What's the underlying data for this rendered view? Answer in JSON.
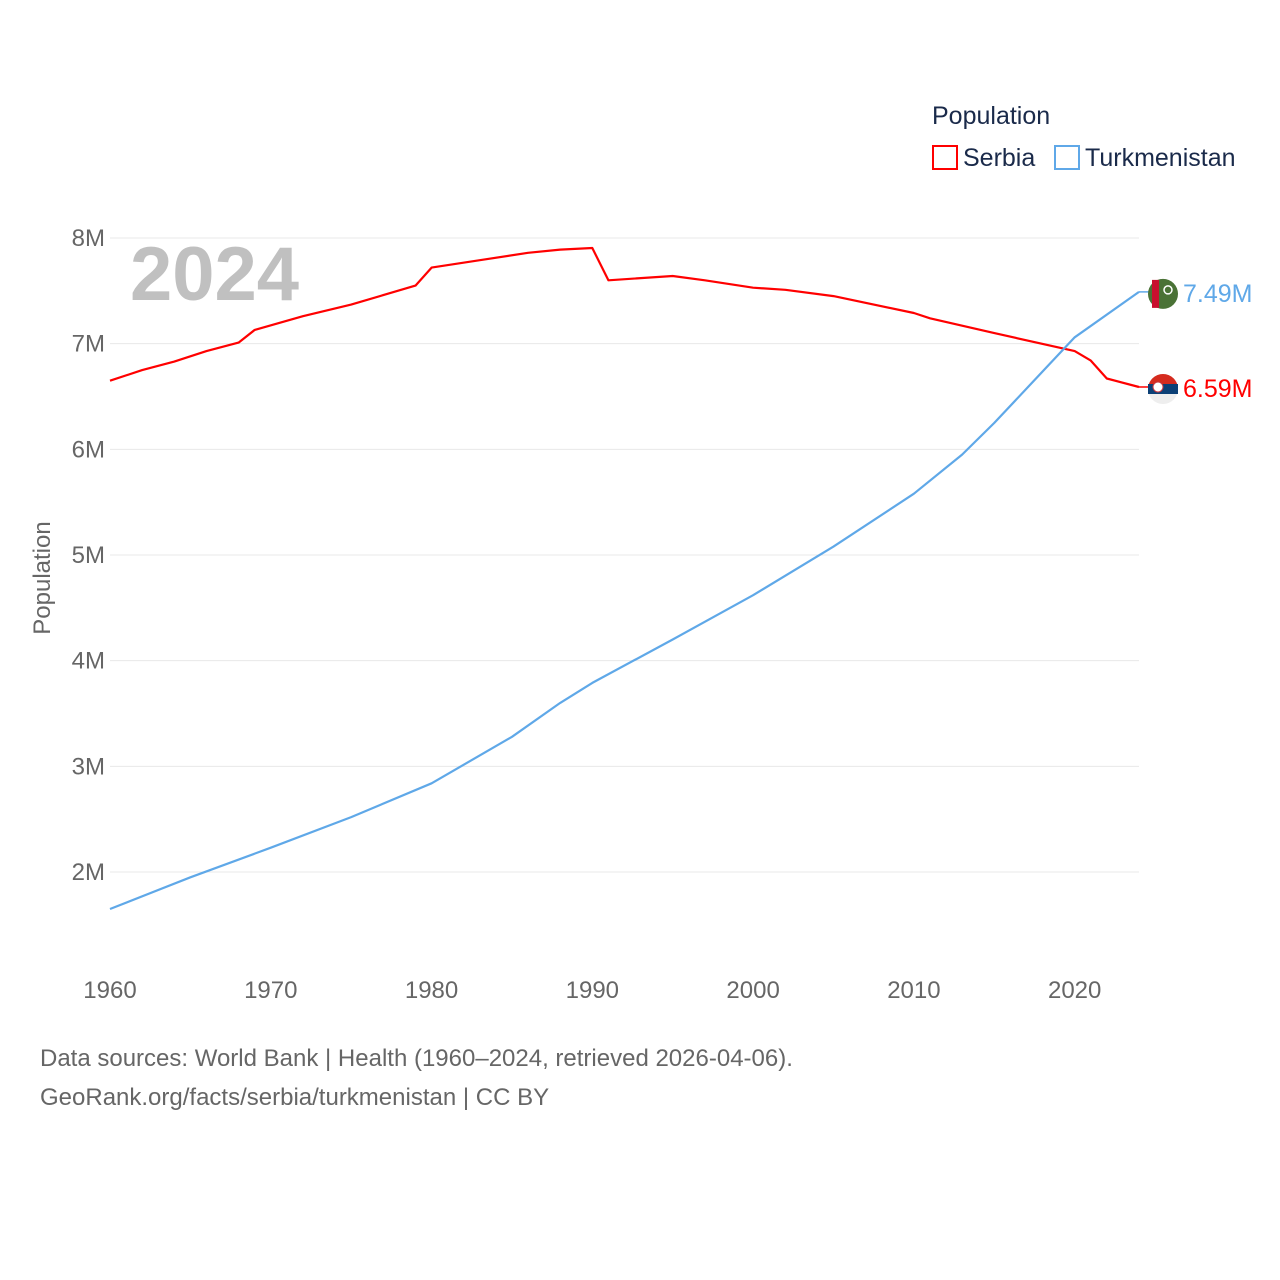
{
  "chart_data": {
    "type": "line",
    "title": "",
    "year_label": "2024",
    "xlabel": "",
    "ylabel": "Population",
    "xlim": [
      1960,
      2024
    ],
    "ylim": [
      1.3,
      8.0
    ],
    "x_ticks": [
      1960,
      1970,
      1980,
      1990,
      2000,
      2010,
      2020
    ],
    "y_ticks": [
      {
        "v": 8,
        "label": "8M"
      },
      {
        "v": 7,
        "label": "7M"
      },
      {
        "v": 6,
        "label": "6M"
      },
      {
        "v": 5,
        "label": "5M"
      },
      {
        "v": 4,
        "label": "4M"
      },
      {
        "v": 3,
        "label": "3M"
      },
      {
        "v": 2,
        "label": "2M"
      }
    ],
    "grid": true,
    "legend": {
      "title": "Population",
      "placement": "top-right"
    },
    "units": "millions",
    "series": [
      {
        "name": "Serbia",
        "color": "#ff0000",
        "end_label": "6.59M",
        "x": [
          1960,
          1962,
          1964,
          1966,
          1968,
          1969,
          1972,
          1975,
          1977,
          1979,
          1980,
          1983,
          1986,
          1988,
          1990,
          1991,
          1995,
          1997,
          2000,
          2002,
          2005,
          2010,
          2011,
          2015,
          2020,
          2021,
          2022,
          2024
        ],
        "y": [
          6.65,
          6.75,
          6.83,
          6.93,
          7.01,
          7.13,
          7.26,
          7.37,
          7.46,
          7.55,
          7.72,
          7.79,
          7.86,
          7.89,
          7.905,
          7.6,
          7.64,
          7.6,
          7.53,
          7.51,
          7.45,
          7.29,
          7.24,
          7.1,
          6.93,
          6.84,
          6.67,
          6.59
        ]
      },
      {
        "name": "Turkmenistan",
        "color": "#5fa8e8",
        "end_label": "7.49M",
        "x": [
          1960,
          1965,
          1970,
          1975,
          1980,
          1985,
          1988,
          1990,
          1995,
          2000,
          2005,
          2010,
          2013,
          2015,
          2020,
          2024
        ],
        "y": [
          1.65,
          1.95,
          2.23,
          2.52,
          2.84,
          3.28,
          3.6,
          3.79,
          4.2,
          4.62,
          5.08,
          5.58,
          5.95,
          6.25,
          7.06,
          7.49
        ]
      }
    ]
  },
  "footer": {
    "line1": "Data sources: World Bank | Health (1960–2024, retrieved 2026-04-06).",
    "line2": "GeoRank.org/facts/serbia/turkmenistan | CC BY"
  }
}
